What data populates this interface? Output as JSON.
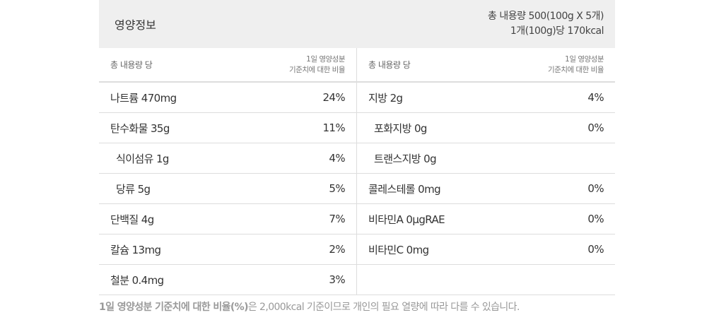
{
  "header": {
    "title": "영양정보",
    "total": "총 내용량 500(100g X 5개)",
    "per_unit": "1개(100g)당 170kcal"
  },
  "subheader": {
    "left": "총 내용량 당",
    "right_line1": "1일 영양성분",
    "right_line2": "기준치에 대한 비율"
  },
  "left_rows": [
    {
      "name": "나트륨 470mg",
      "pct": "24%",
      "indent": false
    },
    {
      "name": "탄수화물 35g",
      "pct": "11%",
      "indent": false
    },
    {
      "name": "식이섬유 1g",
      "pct": "4%",
      "indent": true
    },
    {
      "name": "당류 5g",
      "pct": "5%",
      "indent": true
    },
    {
      "name": "단백질 4g",
      "pct": "7%",
      "indent": false
    },
    {
      "name": "칼슘 13mg",
      "pct": "2%",
      "indent": false
    },
    {
      "name": "철분 0.4mg",
      "pct": "3%",
      "indent": false
    }
  ],
  "right_rows": [
    {
      "name": "지방 2g",
      "pct": "4%",
      "indent": false
    },
    {
      "name": "포화지방 0g",
      "pct": "0%",
      "indent": true
    },
    {
      "name": "트랜스지방 0g",
      "pct": "",
      "indent": true
    },
    {
      "name": "콜레스테롤 0mg",
      "pct": "0%",
      "indent": false
    },
    {
      "name": "비타민A 0μgRAE",
      "pct": "0%",
      "indent": false
    },
    {
      "name": "비타민C 0mg",
      "pct": "0%",
      "indent": false
    },
    {
      "name": "",
      "pct": "",
      "indent": false
    }
  ],
  "footnote": {
    "bold": "1일 영양성분 기준치에 대한 비율(%)",
    "rest": "은 2,000kcal 기준이므로 개인의 필요 열량에 따라 다를 수 있습니다."
  }
}
